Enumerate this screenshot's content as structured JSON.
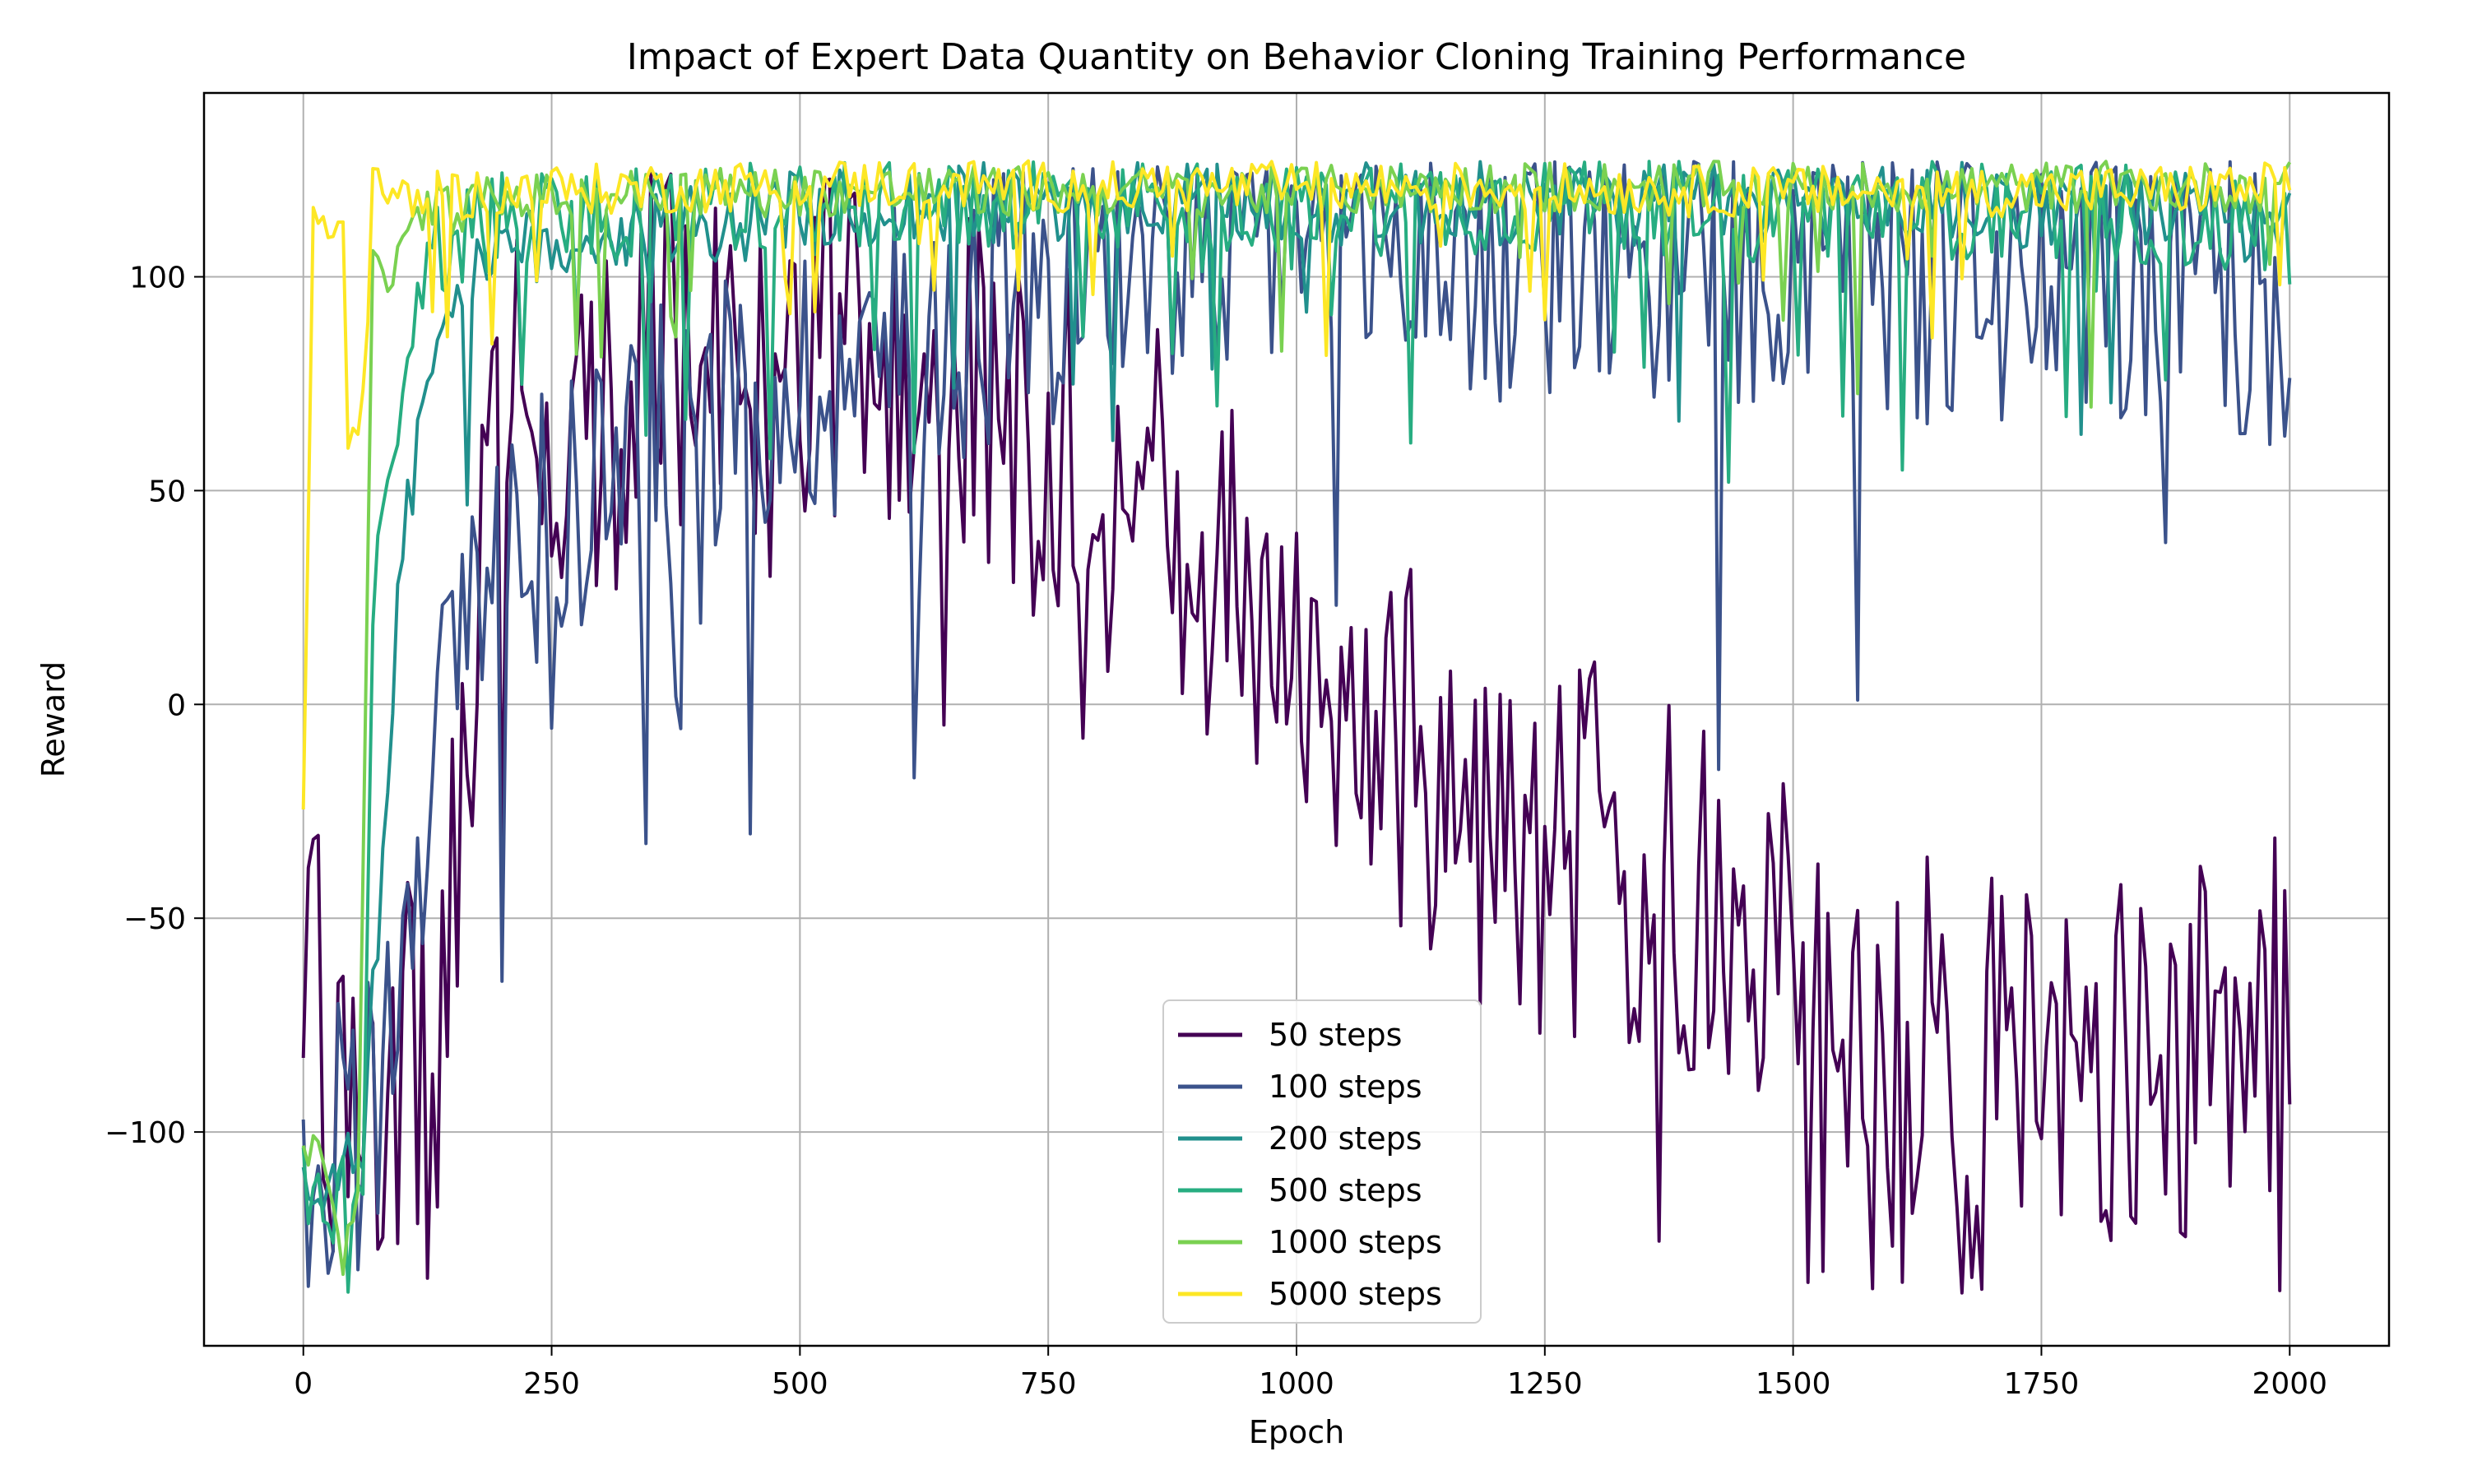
{
  "chart_data": {
    "type": "line",
    "title": "Impact of Expert Data Quantity on Behavior Cloning Training Performance",
    "xlabel": "Epoch",
    "ylabel": "Reward",
    "xlim": [
      -100,
      2100
    ],
    "ylim": [
      -150,
      143
    ],
    "x_ticks": [
      0,
      250,
      500,
      750,
      1000,
      1250,
      1500,
      1750,
      2000
    ],
    "x_tick_labels": [
      "0",
      "250",
      "500",
      "750",
      "1000",
      "1250",
      "1500",
      "1750",
      "2000"
    ],
    "y_ticks": [
      -100,
      -50,
      0,
      50,
      100
    ],
    "y_tick_labels": [
      "−100",
      "−50",
      "0",
      "50",
      "100"
    ],
    "grid": true,
    "legend_position": "lower-center",
    "series": [
      {
        "name": "50 steps",
        "color": "#440154",
        "anchors": [
          [
            0,
            -93
          ],
          [
            8,
            -3
          ],
          [
            20,
            -92
          ],
          [
            40,
            -95
          ],
          [
            60,
            -88
          ],
          [
            100,
            -85
          ],
          [
            130,
            -90
          ],
          [
            160,
            -10
          ],
          [
            200,
            60
          ],
          [
            250,
            75
          ],
          [
            300,
            60
          ],
          [
            350,
            90
          ],
          [
            400,
            80
          ],
          [
            450,
            70
          ],
          [
            500,
            75
          ],
          [
            550,
            80
          ],
          [
            600,
            85
          ],
          [
            650,
            80
          ],
          [
            700,
            65
          ],
          [
            750,
            60
          ],
          [
            800,
            55
          ],
          [
            850,
            45
          ],
          [
            900,
            35
          ],
          [
            950,
            25
          ],
          [
            1000,
            20
          ],
          [
            1050,
            5
          ],
          [
            1100,
            -5
          ],
          [
            1150,
            -25
          ],
          [
            1200,
            -30
          ],
          [
            1250,
            -35
          ],
          [
            1300,
            -35
          ],
          [
            1350,
            -40
          ],
          [
            1400,
            -50
          ],
          [
            1450,
            -55
          ],
          [
            1500,
            -65
          ],
          [
            1550,
            -70
          ],
          [
            1600,
            -75
          ],
          [
            1650,
            -78
          ],
          [
            1700,
            -80
          ],
          [
            1750,
            -82
          ],
          [
            1800,
            -82
          ],
          [
            1850,
            -80
          ],
          [
            1900,
            -82
          ],
          [
            1950,
            -83
          ],
          [
            2000,
            -65
          ]
        ],
        "noise": 45,
        "spike_prob": 0.06,
        "spike_amp": 55,
        "cap": 125
      },
      {
        "name": "100 steps",
        "color": "#3b528b",
        "anchors": [
          [
            0,
            -110
          ],
          [
            20,
            -100
          ],
          [
            50,
            -105
          ],
          [
            80,
            -80
          ],
          [
            100,
            -40
          ],
          [
            130,
            -20
          ],
          [
            160,
            20
          ],
          [
            200,
            35
          ],
          [
            250,
            45
          ],
          [
            300,
            55
          ],
          [
            350,
            60
          ],
          [
            400,
            65
          ],
          [
            450,
            70
          ],
          [
            500,
            75
          ],
          [
            550,
            78
          ],
          [
            600,
            85
          ],
          [
            650,
            90
          ],
          [
            700,
            95
          ],
          [
            750,
            100
          ],
          [
            800,
            105
          ],
          [
            900,
            108
          ],
          [
            1000,
            108
          ],
          [
            1100,
            107
          ],
          [
            1200,
            105
          ],
          [
            1300,
            103
          ],
          [
            1400,
            102
          ],
          [
            1500,
            100
          ],
          [
            1600,
            98
          ],
          [
            1700,
            97
          ],
          [
            1800,
            97
          ],
          [
            1900,
            96
          ],
          [
            1950,
            96
          ],
          [
            2000,
            95
          ]
        ],
        "noise": 35,
        "spike_prob": 0.05,
        "spike_amp": 100,
        "cap": 127
      },
      {
        "name": "200 steps",
        "color": "#21908d",
        "anchors": [
          [
            0,
            -112
          ],
          [
            30,
            -110
          ],
          [
            60,
            -100
          ],
          [
            80,
            -40
          ],
          [
            100,
            40
          ],
          [
            130,
            80
          ],
          [
            160,
            95
          ],
          [
            200,
            105
          ],
          [
            300,
            110
          ],
          [
            500,
            115
          ],
          [
            700,
            117
          ],
          [
            900,
            117
          ],
          [
            1100,
            117
          ],
          [
            1300,
            117
          ],
          [
            1500,
            117
          ],
          [
            1700,
            117
          ],
          [
            1900,
            115
          ],
          [
            2000,
            110
          ]
        ],
        "noise": 10,
        "spike_prob": 0.03,
        "spike_amp": 45,
        "cap": 128
      },
      {
        "name": "500 steps",
        "color": "#27ad81",
        "anchors": [
          [
            0,
            -112
          ],
          [
            30,
            -120
          ],
          [
            60,
            -110
          ],
          [
            70,
            20
          ],
          [
            85,
            50
          ],
          [
            100,
            80
          ],
          [
            130,
            105
          ],
          [
            200,
            115
          ],
          [
            400,
            117
          ],
          [
            600,
            118
          ],
          [
            800,
            118
          ],
          [
            1000,
            117
          ],
          [
            1200,
            117
          ],
          [
            1400,
            117
          ],
          [
            1600,
            116
          ],
          [
            1800,
            116
          ],
          [
            2000,
            110
          ]
        ],
        "noise": 12,
        "spike_prob": 0.07,
        "spike_amp": 55,
        "cap": 127
      },
      {
        "name": "1000 steps",
        "color": "#7ad151",
        "anchors": [
          [
            0,
            -100
          ],
          [
            20,
            -110
          ],
          [
            40,
            -130
          ],
          [
            55,
            -120
          ],
          [
            70,
            110
          ],
          [
            90,
            100
          ],
          [
            120,
            115
          ],
          [
            200,
            118
          ],
          [
            400,
            120
          ],
          [
            600,
            120
          ],
          [
            800,
            120
          ],
          [
            1000,
            120
          ],
          [
            1200,
            121
          ],
          [
            1400,
            121
          ],
          [
            1600,
            121
          ],
          [
            1800,
            121
          ],
          [
            2000,
            121
          ]
        ],
        "noise": 6,
        "spike_prob": 0.03,
        "spike_amp": 40,
        "cap": 130
      },
      {
        "name": "5000 steps",
        "color": "#fde725",
        "anchors": [
          [
            0,
            -20
          ],
          [
            10,
            115
          ],
          [
            25,
            110
          ],
          [
            40,
            112
          ],
          [
            45,
            60
          ],
          [
            60,
            70
          ],
          [
            70,
            120
          ],
          [
            100,
            118
          ],
          [
            200,
            120
          ],
          [
            400,
            121
          ],
          [
            600,
            122
          ],
          [
            800,
            121
          ],
          [
            1000,
            121
          ],
          [
            1200,
            121
          ],
          [
            1400,
            120
          ],
          [
            1600,
            120
          ],
          [
            1800,
            120
          ],
          [
            2000,
            121
          ]
        ],
        "noise": 6,
        "spike_prob": 0.04,
        "spike_amp": 30,
        "cap": 131
      }
    ]
  }
}
